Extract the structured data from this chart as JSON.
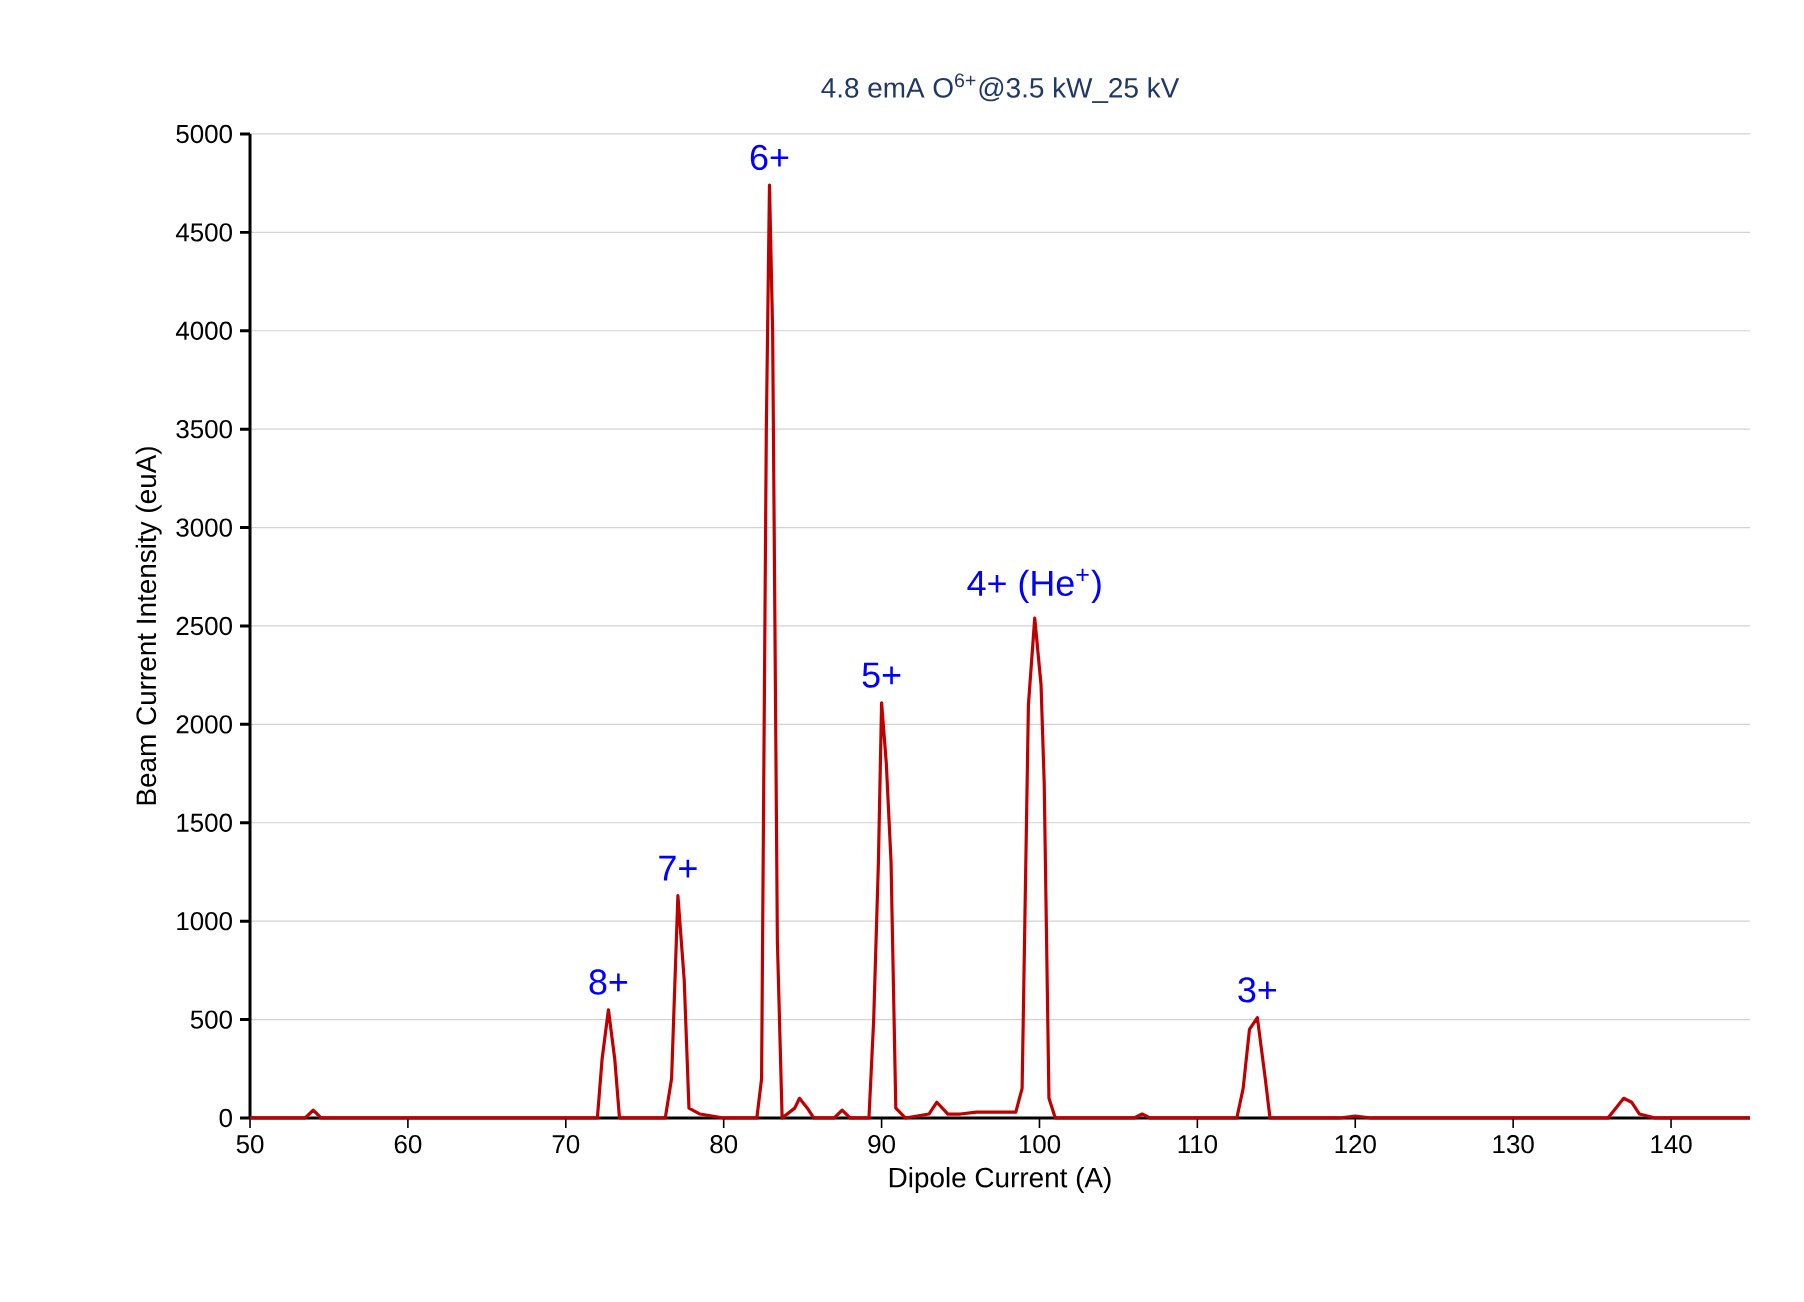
{
  "chart_data": {
    "type": "line",
    "title": "4.8 emA O$^{6+}$@3.5 kW_25 kV",
    "xlabel": "Dipole Current (A)",
    "ylabel": "Beam Current Intensity (euA)",
    "x": [
      50,
      53.5,
      54,
      54.5,
      72,
      72.3,
      72.7,
      73.1,
      73.4,
      76.3,
      76.7,
      77.1,
      77.5,
      77.8,
      78.5,
      80,
      82.1,
      82.4,
      82.7,
      82.9,
      83.1,
      83.4,
      83.7,
      84.5,
      84.8,
      85.3,
      85.7,
      87,
      87.5,
      88,
      89.2,
      89.5,
      89.8,
      90.0,
      90.3,
      90.6,
      90.9,
      91.5,
      93,
      93.5,
      94.2,
      95,
      96,
      98.5,
      98.9,
      99.3,
      99.7,
      100.1,
      100.3,
      100.6,
      101,
      106,
      106.5,
      107,
      112.5,
      112.9,
      113.3,
      113.8,
      114.3,
      114.6,
      119,
      120,
      121,
      136,
      136.5,
      137,
      137.5,
      138,
      139,
      145
    ],
    "series": [
      {
        "color": "#c00000",
        "values": [
          0,
          0,
          40,
          0,
          0,
          300,
          550,
          300,
          0,
          0,
          200,
          1130,
          700,
          50,
          20,
          0,
          0,
          200,
          3500,
          4740,
          4000,
          900,
          0,
          50,
          100,
          50,
          0,
          0,
          40,
          0,
          0,
          500,
          1300,
          2110,
          1800,
          1300,
          50,
          0,
          20,
          80,
          20,
          20,
          30,
          30,
          150,
          2100,
          2540,
          2200,
          1700,
          100,
          0,
          0,
          20,
          0,
          0,
          150,
          450,
          510,
          200,
          0,
          0,
          10,
          0,
          0,
          50,
          100,
          80,
          20,
          0,
          0
        ]
      }
    ],
    "xlim": [
      50,
      145
    ],
    "ylim": [
      0,
      5000
    ],
    "xticks": [
      50,
      60,
      70,
      80,
      90,
      100,
      110,
      120,
      130,
      140
    ],
    "yticks": [
      0,
      500,
      1000,
      1500,
      2000,
      2500,
      3000,
      3500,
      4000,
      4500,
      5000
    ],
    "grid": "y",
    "marker": "none",
    "line_style": "solid",
    "annotations": [
      {
        "text": "8+",
        "x": 72.7,
        "y": 550
      },
      {
        "text": "7+",
        "x": 77.1,
        "y": 1130
      },
      {
        "text": "6+",
        "x": 82.9,
        "y": 4740
      },
      {
        "text": "5+",
        "x": 90.0,
        "y": 2110
      },
      {
        "text": "4+ (He$^{+}$)",
        "x": 99.7,
        "y": 2540
      },
      {
        "text": "3+",
        "x": 113.8,
        "y": 510
      }
    ]
  }
}
